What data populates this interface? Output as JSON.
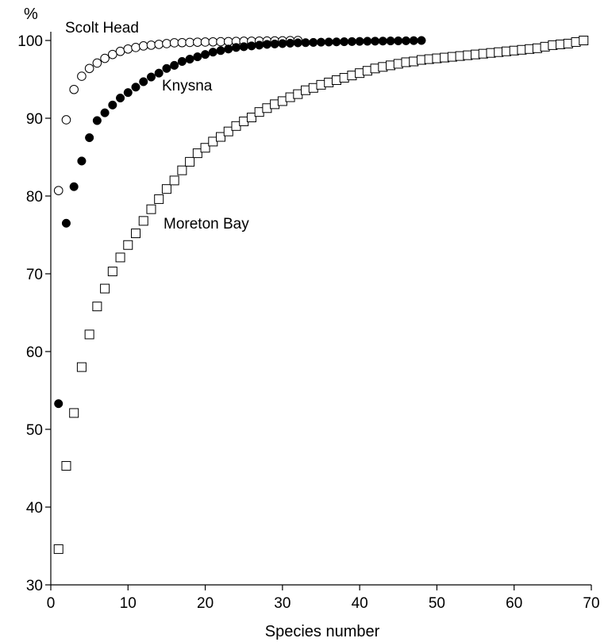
{
  "chart_data": {
    "type": "scatter",
    "title": "",
    "xlabel": "Species number",
    "ylabel": "%",
    "xlim": [
      0,
      70
    ],
    "ylim": [
      30,
      100
    ],
    "xticks": [
      0,
      10,
      20,
      30,
      40,
      50,
      60,
      70
    ],
    "yticks": [
      30,
      40,
      50,
      60,
      70,
      80,
      90,
      100
    ],
    "grid": false,
    "series": [
      {
        "name": "Scolt Head",
        "marker": "open-circle",
        "color": "#000000",
        "x": [
          1,
          2,
          3,
          4,
          5,
          6,
          7,
          8,
          9,
          10,
          11,
          12,
          13,
          14,
          15,
          16,
          17,
          18,
          19,
          20,
          21,
          22,
          23,
          24,
          25,
          26,
          27,
          28,
          29,
          30,
          31,
          32
        ],
        "y": [
          80.7,
          89.8,
          93.7,
          95.4,
          96.4,
          97.1,
          97.7,
          98.2,
          98.6,
          98.9,
          99.1,
          99.3,
          99.4,
          99.5,
          99.6,
          99.7,
          99.72,
          99.75,
          99.78,
          99.8,
          99.82,
          99.84,
          99.86,
          99.88,
          99.9,
          99.91,
          99.92,
          99.93,
          99.95,
          99.96,
          99.98,
          100
        ]
      },
      {
        "name": "Knysna",
        "marker": "filled-circle",
        "color": "#000000",
        "x": [
          1,
          2,
          3,
          4,
          5,
          6,
          7,
          8,
          9,
          10,
          11,
          12,
          13,
          14,
          15,
          16,
          17,
          18,
          19,
          20,
          21,
          22,
          23,
          24,
          25,
          26,
          27,
          28,
          29,
          30,
          31,
          32,
          33,
          34,
          35,
          36,
          37,
          38,
          39,
          40,
          41,
          42,
          43,
          44,
          45,
          46,
          47,
          48
        ],
        "y": [
          53.3,
          76.5,
          81.2,
          84.5,
          87.5,
          89.7,
          90.7,
          91.7,
          92.6,
          93.3,
          94.0,
          94.7,
          95.3,
          95.8,
          96.4,
          96.8,
          97.3,
          97.6,
          97.9,
          98.2,
          98.5,
          98.7,
          98.9,
          99.1,
          99.2,
          99.3,
          99.4,
          99.5,
          99.55,
          99.6,
          99.65,
          99.7,
          99.72,
          99.75,
          99.78,
          99.8,
          99.82,
          99.84,
          99.86,
          99.88,
          99.9,
          99.91,
          99.92,
          99.94,
          99.95,
          99.96,
          99.98,
          100
        ]
      },
      {
        "name": "Moreton Bay",
        "marker": "open-square",
        "color": "#000000",
        "x": [
          1,
          2,
          3,
          4,
          5,
          6,
          7,
          8,
          9,
          10,
          11,
          12,
          13,
          14,
          15,
          16,
          17,
          18,
          19,
          20,
          21,
          22,
          23,
          24,
          25,
          26,
          27,
          28,
          29,
          30,
          31,
          32,
          33,
          34,
          35,
          36,
          37,
          38,
          39,
          40,
          41,
          42,
          43,
          44,
          45,
          46,
          47,
          48,
          49,
          50,
          51,
          52,
          53,
          54,
          55,
          56,
          57,
          58,
          59,
          60,
          61,
          62,
          63,
          64,
          65,
          66,
          67,
          68,
          69
        ],
        "y": [
          34.6,
          45.3,
          52.1,
          58.0,
          62.2,
          65.8,
          68.1,
          70.3,
          72.1,
          73.7,
          75.2,
          76.8,
          78.3,
          79.6,
          80.9,
          82.0,
          83.3,
          84.4,
          85.5,
          86.2,
          87.0,
          87.6,
          88.3,
          89.0,
          89.6,
          90.1,
          90.8,
          91.3,
          91.8,
          92.2,
          92.7,
          93.1,
          93.6,
          93.9,
          94.3,
          94.6,
          94.9,
          95.2,
          95.5,
          95.8,
          96.1,
          96.4,
          96.6,
          96.8,
          97.0,
          97.2,
          97.3,
          97.5,
          97.6,
          97.7,
          97.8,
          97.9,
          98.0,
          98.1,
          98.2,
          98.3,
          98.4,
          98.5,
          98.6,
          98.7,
          98.8,
          98.9,
          99.0,
          99.2,
          99.4,
          99.5,
          99.6,
          99.8,
          100
        ]
      }
    ]
  }
}
